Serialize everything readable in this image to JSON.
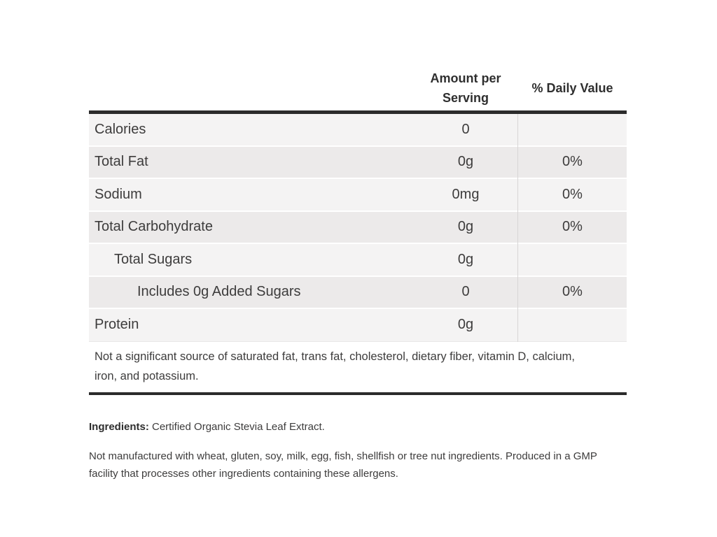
{
  "table": {
    "header": {
      "amount_label": "Amount per Serving",
      "daily_value_label": "% Daily Value"
    },
    "rows": [
      {
        "label": "Calories",
        "amount": "0",
        "daily_value": "",
        "indent": 0
      },
      {
        "label": "Total Fat",
        "amount": "0g",
        "daily_value": "0%",
        "indent": 0
      },
      {
        "label": "Sodium",
        "amount": "0mg",
        "daily_value": "0%",
        "indent": 0
      },
      {
        "label": "Total Carbohydrate",
        "amount": "0g",
        "daily_value": "0%",
        "indent": 0
      },
      {
        "label": "Total Sugars",
        "amount": "0g",
        "daily_value": "",
        "indent": 1
      },
      {
        "label": "Includes 0g Added Sugars",
        "amount": "0",
        "daily_value": "0%",
        "indent": 2
      },
      {
        "label": "Protein",
        "amount": "0g",
        "daily_value": "",
        "indent": 0
      }
    ],
    "footnote": "Not a significant source of saturated fat, trans fat, cholesterol, dietary fiber, vitamin D, calcium, iron, and potassium."
  },
  "ingredients": {
    "label": "Ingredients:",
    "value": " Certified Organic Stevia Leaf Extract."
  },
  "allergen_note": "Not manufactured with wheat, gluten, soy, milk, egg, fish, shellfish or tree nut ingredients. Produced in a GMP facility that processes other ingredients containing these allergens.",
  "colors": {
    "rule": "#2b2b2b",
    "row_light": "#f4f3f3",
    "row_dark": "#eceaea",
    "column_divider": "#d8d6d6",
    "text": "#3d3c3c"
  }
}
